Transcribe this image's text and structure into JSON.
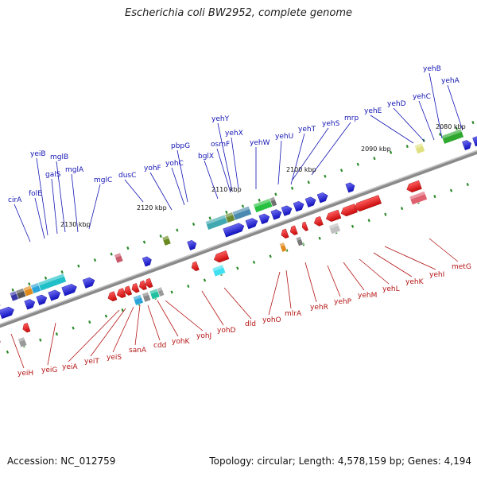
{
  "title": "Escherichia coli BW2952, complete genome",
  "footer": {
    "accession_label": "Accession:",
    "accession": "NC_012759",
    "topology_text": "Topology: circular; Length: 4,578,159 bp; Genes: 4,194"
  },
  "axis_labels": [
    "2080 kbp",
    "2090 kbp",
    "2100 kbp",
    "2110 kbp",
    "2120 kbp",
    "2130 kbp"
  ],
  "top_genes": [
    "cirA",
    "folE",
    "yeiB",
    "galS",
    "mglB",
    "mglA",
    "mglC",
    "dusC",
    "yohF",
    "yohC",
    "pbpG",
    "bglX",
    "osmF",
    "yehY",
    "yehX",
    "yehW",
    "yehU",
    "yehT",
    "yehS",
    "mrp",
    "yehE",
    "yehD",
    "yehC",
    "yehB",
    "yehA"
  ],
  "bottom_genes": [
    "yeiH",
    "yeiG",
    "yeiA",
    "yeiT",
    "yeiS",
    "sanA",
    "cdd",
    "yohK",
    "yohJ",
    "yohD",
    "dld",
    "yohO",
    "mlrA",
    "yehR",
    "yehP",
    "yehM",
    "yehL",
    "yehK",
    "yehI",
    "metG"
  ],
  "colors": {
    "backbone": "#8a8a8a",
    "forward_gene": "#1a1ae6",
    "reverse_gene": "#e61414",
    "top_label": "#1414b4",
    "bottom_label": "#b41414",
    "tick": "#2a8a2a"
  }
}
